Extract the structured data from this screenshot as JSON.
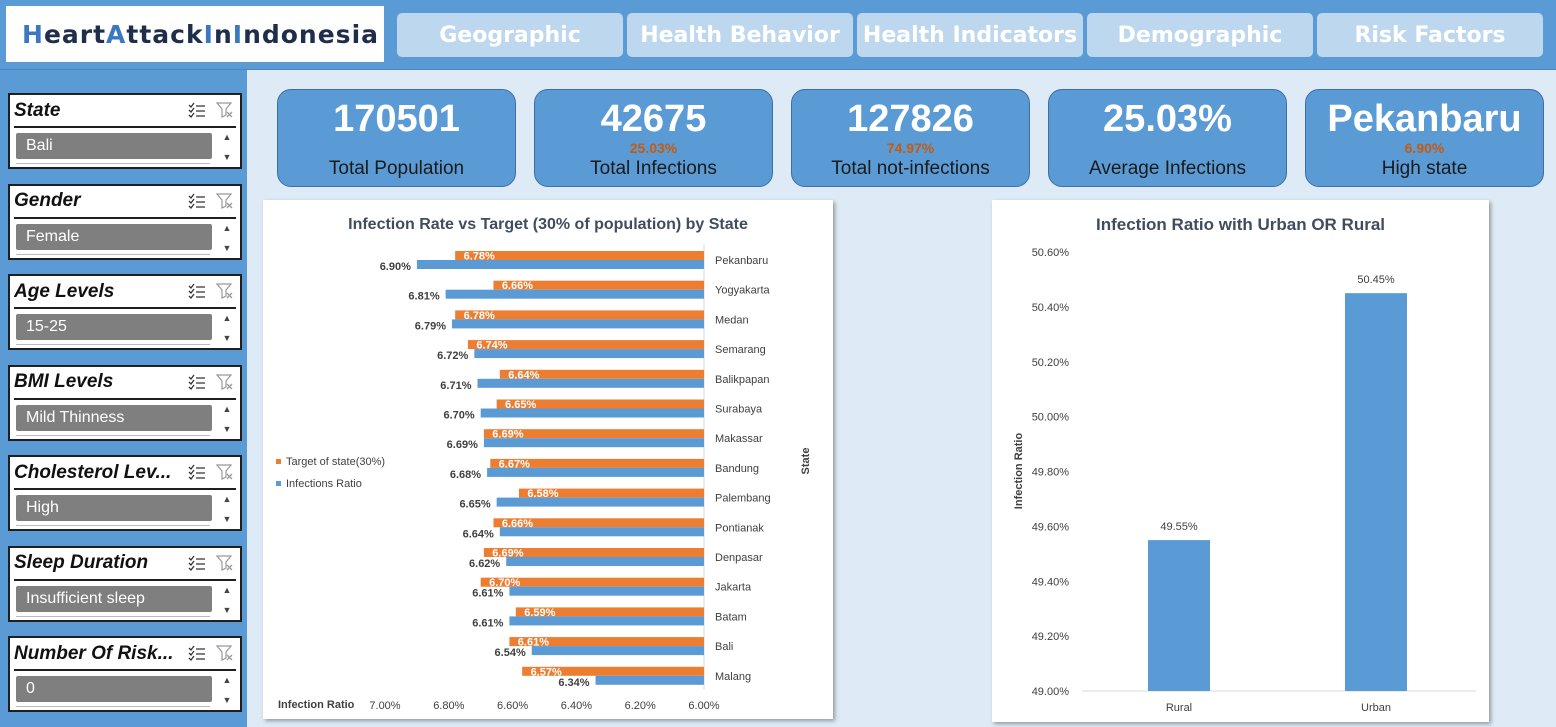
{
  "header": {
    "title_parts": [
      {
        "text": "H",
        "hl": true
      },
      {
        "text": "eart",
        "hl": false
      },
      {
        "text": "A",
        "hl": true
      },
      {
        "text": "ttack ",
        "hl": false
      },
      {
        "text": "I",
        "hl": true
      },
      {
        "text": "n ",
        "hl": false
      },
      {
        "text": "I",
        "hl": true
      },
      {
        "text": "ndonesia",
        "hl": false
      }
    ],
    "tabs": [
      "Geographic",
      "Health Behavior",
      "Health Indicators",
      "Demographic",
      "Risk Factors"
    ]
  },
  "slicers": [
    {
      "title": "State",
      "value": "Bali"
    },
    {
      "title": "Gender",
      "value": "Female"
    },
    {
      "title": "Age Levels",
      "value": "15-25"
    },
    {
      "title": "BMI Levels",
      "value": "Mild Thinness"
    },
    {
      "title": "Cholesterol Lev...",
      "value": "High"
    },
    {
      "title": "Sleep Duration",
      "value": "Insufficient sleep"
    },
    {
      "title": "Number Of Risk...",
      "value": "0"
    }
  ],
  "kpis": [
    {
      "value": "170501",
      "sub": "",
      "label": "Total Population"
    },
    {
      "value": "42675",
      "sub": "25.03%",
      "label": "Total Infections"
    },
    {
      "value": "127826",
      "sub": "74.97%",
      "label": "Total not-infections"
    },
    {
      "value": "25.03%",
      "sub": "",
      "label": "Average Infections"
    },
    {
      "value": "Pekanbaru",
      "sub": "6.90%",
      "label": "High state"
    }
  ],
  "colors": {
    "blue": "#5b9bd5",
    "orange": "#ed7d31",
    "title_accent": "#3a78c2"
  },
  "icons": {
    "multiselect": "multiselect-icon",
    "clear_filter": "clear-filter-icon"
  },
  "chart_data": [
    {
      "type": "bar",
      "orientation": "horizontal",
      "title": "Infection Rate vs Target (30% of population) by State",
      "xlabel": "Infection Ratio",
      "ylabel": "State",
      "x_reversed": true,
      "xlim": [
        6.0,
        7.0
      ],
      "xticks": [
        "7.00%",
        "6.80%",
        "6.60%",
        "6.40%",
        "6.20%",
        "6.00%"
      ],
      "legend_position": "left",
      "categories": [
        "Pekanbaru",
        "Yogyakarta",
        "Medan",
        "Semarang",
        "Balikpapan",
        "Surabaya",
        "Makassar",
        "Bandung",
        "Palembang",
        "Pontianak",
        "Denpasar",
        "Jakarta",
        "Batam",
        "Bali",
        "Malang"
      ],
      "series": [
        {
          "name": "Target of state(30%)",
          "color": "#ed7d31",
          "values": [
            6.78,
            6.66,
            6.78,
            6.74,
            6.64,
            6.65,
            6.69,
            6.67,
            6.58,
            6.66,
            6.69,
            6.7,
            6.59,
            6.61,
            6.57
          ]
        },
        {
          "name": "Infections Ratio",
          "color": "#5b9bd5",
          "values": [
            6.9,
            6.81,
            6.79,
            6.72,
            6.71,
            6.7,
            6.69,
            6.68,
            6.65,
            6.64,
            6.62,
            6.61,
            6.61,
            6.54,
            6.34
          ]
        }
      ]
    },
    {
      "type": "bar",
      "title": "Infection Ratio with Urban OR Rural",
      "ylabel": "Infection Ratio",
      "xlabel": "",
      "ylim": [
        49.0,
        50.6
      ],
      "yticks": [
        "50.60%",
        "50.40%",
        "50.20%",
        "50.00%",
        "49.80%",
        "49.60%",
        "49.40%",
        "49.20%",
        "49.00%"
      ],
      "categories": [
        "Rural",
        "Urban"
      ],
      "values": [
        49.55,
        50.45
      ],
      "labels": [
        "49.55%",
        "50.45%"
      ]
    }
  ]
}
